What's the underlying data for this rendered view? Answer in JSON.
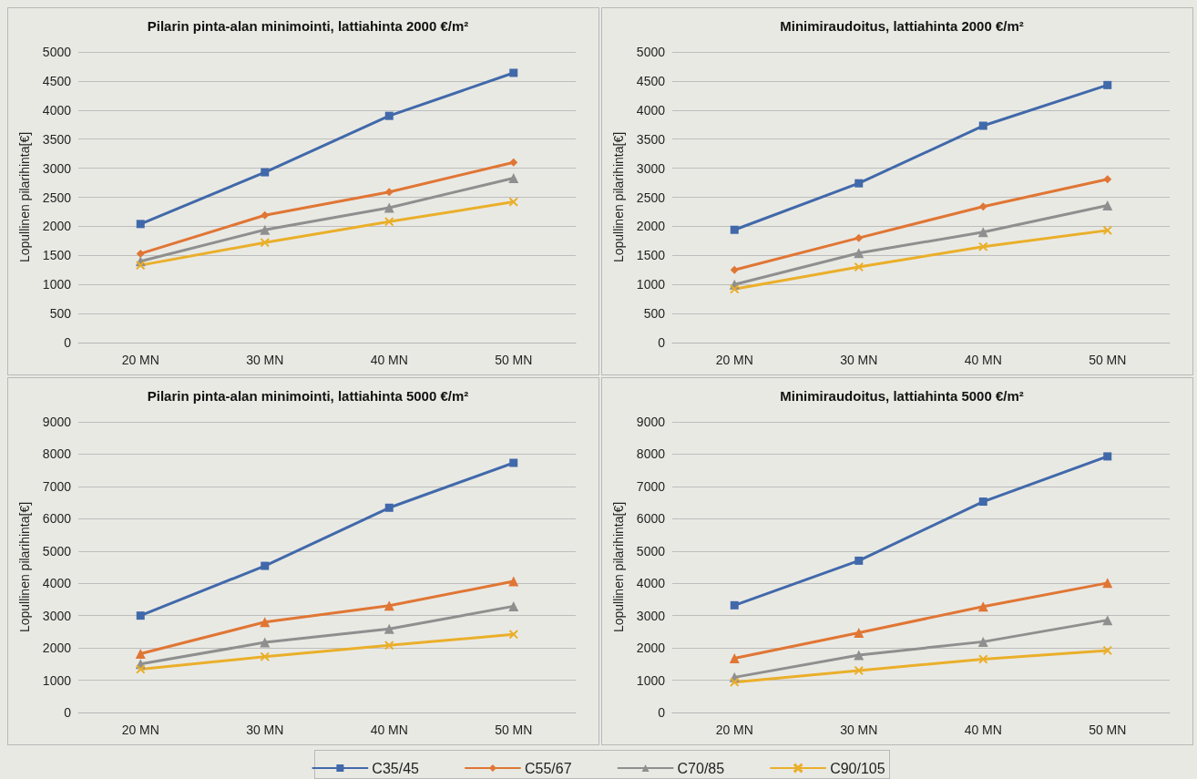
{
  "chart_data": [
    {
      "type": "line",
      "title": "Pilarin pinta-alan minimointi, lattiahinta 2000 €/m²",
      "ylabel": "Lopullinen pilarihinta[€]",
      "categories": [
        "20 MN",
        "30 MN",
        "40 MN",
        "50 MN"
      ],
      "ylim": [
        0,
        5000
      ],
      "yticks": [
        0,
        500,
        1000,
        1500,
        2000,
        2500,
        3000,
        3500,
        4000,
        4500,
        5000
      ],
      "grid": "y",
      "legend": "bottom",
      "line_style": "solid",
      "series": [
        {
          "name": "C35/45",
          "color": "#4169aa",
          "marker": "square",
          "values": [
            2040,
            2930,
            3900,
            4640
          ]
        },
        {
          "name": "C55/67",
          "color": "#e07634",
          "marker": "diamond",
          "values": [
            1530,
            2190,
            2590,
            3100
          ]
        },
        {
          "name": "C70/85",
          "color": "#8f8f8f",
          "marker": "triangle",
          "values": [
            1400,
            1940,
            2320,
            2830
          ]
        },
        {
          "name": "C90/105",
          "color": "#eaaf2a",
          "marker": "cross",
          "values": [
            1330,
            1720,
            2080,
            2420
          ]
        }
      ]
    },
    {
      "type": "line",
      "title": "Minimiraudoitus, lattiahinta 2000 €/m²",
      "ylabel": "Lopullinen pilarihinta[€]",
      "categories": [
        "20 MN",
        "30 MN",
        "40 MN",
        "50 MN"
      ],
      "ylim": [
        0,
        5000
      ],
      "yticks": [
        0,
        500,
        1000,
        1500,
        2000,
        2500,
        3000,
        3500,
        4000,
        4500,
        5000
      ],
      "grid": "y",
      "line_style": "solid",
      "series": [
        {
          "color": "#4169aa",
          "marker": "square",
          "values": [
            1940,
            2740,
            3730,
            4430
          ]
        },
        {
          "color": "#e07634",
          "marker": "diamond",
          "values": [
            1250,
            1800,
            2340,
            2810
          ]
        },
        {
          "color": "#8f8f8f",
          "marker": "triangle",
          "values": [
            1000,
            1540,
            1900,
            2360
          ]
        },
        {
          "color": "#eaaf2a",
          "marker": "cross",
          "values": [
            920,
            1300,
            1650,
            1930
          ]
        }
      ]
    },
    {
      "type": "line",
      "title": "Pilarin pinta-alan minimointi, lattiahinta 5000 €/m²",
      "ylabel": "Lopullinen pilarihinta[€]",
      "categories": [
        "20 MN",
        "30 MN",
        "40 MN",
        "50 MN"
      ],
      "ylim": [
        0,
        9000
      ],
      "yticks": [
        0,
        1000,
        2000,
        3000,
        4000,
        5000,
        6000,
        7000,
        8000,
        9000
      ],
      "grid": "y",
      "line_style": "solid",
      "series": [
        {
          "color": "#4169aa",
          "marker": "square",
          "values": [
            3000,
            4540,
            6340,
            7730
          ]
        },
        {
          "color": "#e07634",
          "marker": "triangle",
          "values": [
            1820,
            2800,
            3310,
            4060
          ]
        },
        {
          "color": "#8f8f8f",
          "marker": "triangle",
          "values": [
            1500,
            2170,
            2590,
            3290
          ]
        },
        {
          "color": "#eaaf2a",
          "marker": "cross",
          "values": [
            1340,
            1730,
            2080,
            2420
          ]
        }
      ]
    },
    {
      "type": "line",
      "title": "Minimiraudoitus, lattiahinta 5000 €/m²",
      "ylabel": "Lopullinen pilarihinta[€]",
      "categories": [
        "20 MN",
        "30 MN",
        "40 MN",
        "50 MN"
      ],
      "ylim": [
        0,
        9000
      ],
      "yticks": [
        0,
        1000,
        2000,
        3000,
        4000,
        5000,
        6000,
        7000,
        8000,
        9000
      ],
      "grid": "y",
      "line_style": "solid",
      "series": [
        {
          "color": "#4169aa",
          "marker": "square",
          "values": [
            3320,
            4700,
            6530,
            7930
          ]
        },
        {
          "color": "#e07634",
          "marker": "triangle",
          "values": [
            1680,
            2470,
            3280,
            4010
          ]
        },
        {
          "color": "#8f8f8f",
          "marker": "triangle",
          "values": [
            1090,
            1780,
            2190,
            2860
          ]
        },
        {
          "color": "#eaaf2a",
          "marker": "cross",
          "values": [
            940,
            1300,
            1650,
            1920
          ]
        }
      ]
    }
  ]
}
